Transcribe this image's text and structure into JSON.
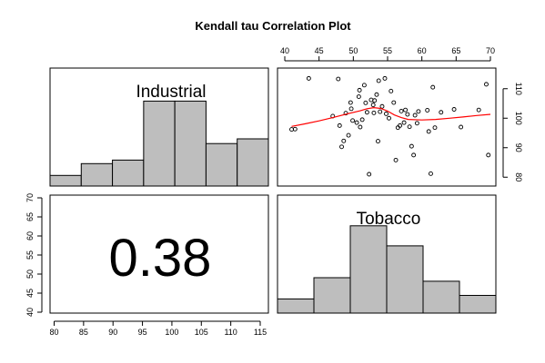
{
  "chart_data": {
    "type": "pairs",
    "title": "Kendall tau Correlation Plot",
    "variables": [
      "Industrial",
      "Tobacco"
    ],
    "correlation": {
      "method": "Kendall tau",
      "value_label": "0.38",
      "value": 0.38
    },
    "industrial_histogram": {
      "type": "bar",
      "label": "Industrial",
      "bin_edges": [
        80,
        85,
        90,
        95,
        100,
        105,
        110,
        115
      ],
      "relative_heights": [
        0.09,
        0.19,
        0.22,
        0.72,
        0.72,
        0.36,
        0.4
      ]
    },
    "tobacco_histogram": {
      "type": "bar",
      "label": "Tobacco",
      "bin_edges": [
        40,
        45,
        50,
        55,
        60,
        65,
        70
      ],
      "relative_heights": [
        0.12,
        0.3,
        0.74,
        0.57,
        0.27,
        0.15
      ]
    },
    "scatter": {
      "type": "scatter",
      "x_variable": "Industrial",
      "y_variable": "Tobacco",
      "xlim": [
        80,
        115
      ],
      "ylim": [
        40,
        70
      ],
      "x_ticks": [
        80,
        85,
        90,
        95,
        100,
        105,
        110,
        115
      ],
      "y_ticks": [
        40,
        45,
        50,
        55,
        60,
        65,
        70
      ],
      "top_axis_label": "Tobacco",
      "top_axis_ticks": [
        40,
        45,
        50,
        55,
        60,
        65,
        70
      ],
      "right_axis_label": "Industrial",
      "right_axis_ticks": [
        80,
        90,
        100,
        110
      ],
      "points": [
        {
          "x": 41.0,
          "y": 96.2
        },
        {
          "x": 41.5,
          "y": 96.3
        },
        {
          "x": 43.5,
          "y": 113.5
        },
        {
          "x": 47.0,
          "y": 100.7
        },
        {
          "x": 47.8,
          "y": 113.3
        },
        {
          "x": 48.0,
          "y": 97.5
        },
        {
          "x": 48.3,
          "y": 90.3
        },
        {
          "x": 48.6,
          "y": 92.3
        },
        {
          "x": 48.9,
          "y": 101.7
        },
        {
          "x": 49.3,
          "y": 94.2
        },
        {
          "x": 49.6,
          "y": 105.3
        },
        {
          "x": 49.7,
          "y": 103.2
        },
        {
          "x": 49.9,
          "y": 99.2
        },
        {
          "x": 50.5,
          "y": 98.5
        },
        {
          "x": 50.8,
          "y": 107.3
        },
        {
          "x": 50.9,
          "y": 109.5
        },
        {
          "x": 51.0,
          "y": 97.0
        },
        {
          "x": 51.3,
          "y": 99.5
        },
        {
          "x": 51.6,
          "y": 111.2
        },
        {
          "x": 51.8,
          "y": 105.2
        },
        {
          "x": 52.0,
          "y": 102.0
        },
        {
          "x": 52.3,
          "y": 81.0
        },
        {
          "x": 52.6,
          "y": 106.2
        },
        {
          "x": 52.9,
          "y": 104.5
        },
        {
          "x": 53.0,
          "y": 101.8
        },
        {
          "x": 53.1,
          "y": 106.0
        },
        {
          "x": 53.4,
          "y": 108.0
        },
        {
          "x": 53.6,
          "y": 92.2
        },
        {
          "x": 53.7,
          "y": 112.7
        },
        {
          "x": 53.9,
          "y": 102.2
        },
        {
          "x": 54.2,
          "y": 104.0
        },
        {
          "x": 54.6,
          "y": 113.5
        },
        {
          "x": 54.8,
          "y": 101.5
        },
        {
          "x": 55.2,
          "y": 100.0
        },
        {
          "x": 55.5,
          "y": 109.2
        },
        {
          "x": 55.9,
          "y": 105.3
        },
        {
          "x": 56.2,
          "y": 85.8
        },
        {
          "x": 56.5,
          "y": 96.8
        },
        {
          "x": 56.8,
          "y": 97.5
        },
        {
          "x": 57.0,
          "y": 102.4
        },
        {
          "x": 57.4,
          "y": 98.5
        },
        {
          "x": 57.6,
          "y": 102.8
        },
        {
          "x": 57.9,
          "y": 101.3
        },
        {
          "x": 58.2,
          "y": 97.1
        },
        {
          "x": 58.5,
          "y": 90.5
        },
        {
          "x": 58.8,
          "y": 87.5
        },
        {
          "x": 59.0,
          "y": 101.0
        },
        {
          "x": 59.3,
          "y": 98.3
        },
        {
          "x": 59.5,
          "y": 102.3
        },
        {
          "x": 60.8,
          "y": 102.7
        },
        {
          "x": 61.0,
          "y": 95.5
        },
        {
          "x": 61.3,
          "y": 81.2
        },
        {
          "x": 61.6,
          "y": 110.5
        },
        {
          "x": 61.9,
          "y": 96.8
        },
        {
          "x": 62.8,
          "y": 102.0
        },
        {
          "x": 64.7,
          "y": 103.0
        },
        {
          "x": 65.7,
          "y": 97.0
        },
        {
          "x": 68.3,
          "y": 102.8
        },
        {
          "x": 69.4,
          "y": 111.5
        },
        {
          "x": 69.7,
          "y": 87.5
        }
      ],
      "smoother": {
        "color": "#ff0000",
        "points": [
          {
            "x": 41,
            "y": 97.2
          },
          {
            "x": 43,
            "y": 98.1
          },
          {
            "x": 45,
            "y": 99.1
          },
          {
            "x": 47,
            "y": 100.2
          },
          {
            "x": 49,
            "y": 101.4
          },
          {
            "x": 51,
            "y": 102.5
          },
          {
            "x": 52,
            "y": 103.2
          },
          {
            "x": 53,
            "y": 103.6
          },
          {
            "x": 54,
            "y": 103.3
          },
          {
            "x": 55,
            "y": 102.4
          },
          {
            "x": 56,
            "y": 101.1
          },
          {
            "x": 57,
            "y": 100.2
          },
          {
            "x": 58,
            "y": 99.6
          },
          {
            "x": 60,
            "y": 99.4
          },
          {
            "x": 62,
            "y": 99.6
          },
          {
            "x": 64,
            "y": 100.0
          },
          {
            "x": 66,
            "y": 100.4
          },
          {
            "x": 68,
            "y": 100.9
          },
          {
            "x": 70,
            "y": 101.3
          }
        ]
      }
    },
    "colors": {
      "bar_fill": "#bebebe",
      "outline": "#000000",
      "smoother": "#ff0000",
      "background": "#ffffff"
    }
  }
}
